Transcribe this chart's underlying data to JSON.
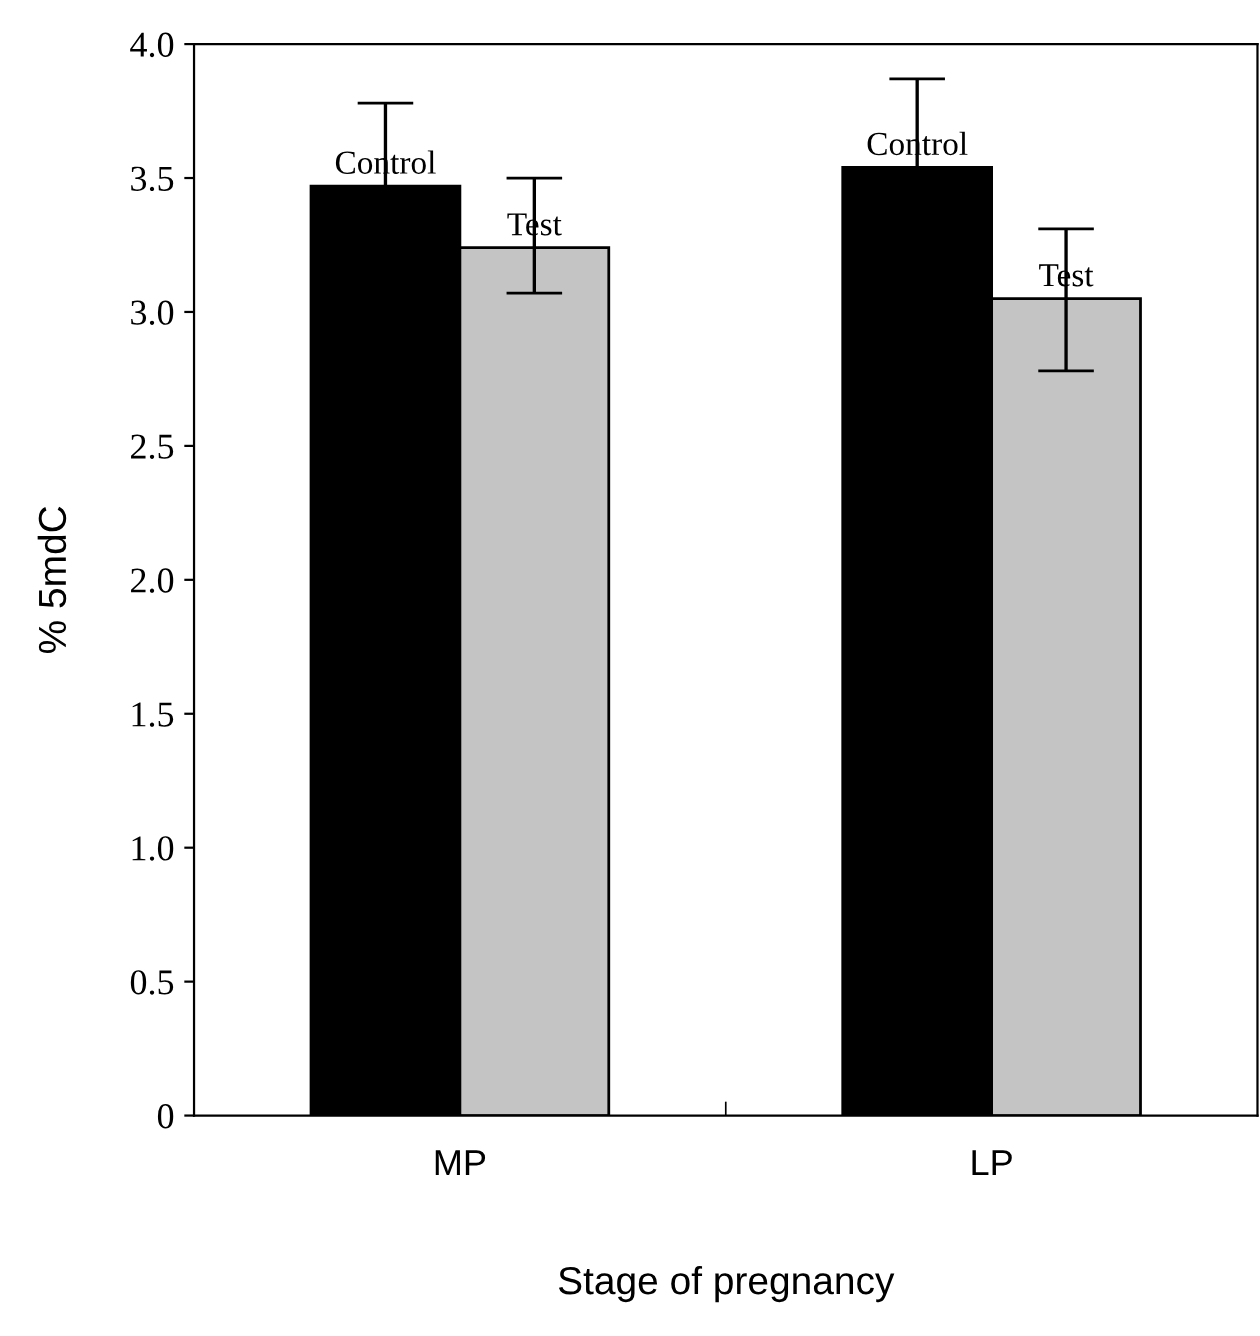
{
  "chart_data": {
    "type": "bar",
    "xlabel": "Stage of pregnancy",
    "ylabel": "% 5mdC",
    "categories": [
      "MP",
      "LP"
    ],
    "series": [
      {
        "name": "Control",
        "color": "#000000",
        "values": [
          3.47,
          3.54
        ],
        "errors": [
          0.31,
          0.33
        ]
      },
      {
        "name": "Test",
        "color": "#c4c4c4",
        "values": [
          3.24,
          3.05
        ],
        "errors": [
          [
            3.07,
            3.5
          ],
          [
            2.78,
            3.31
          ]
        ]
      }
    ],
    "ylim": [
      0,
      4.0
    ],
    "yticks": [
      0,
      0.5,
      {
        "value": 1,
        "label": "1.0"
      },
      1.5,
      {
        "value": 2,
        "label": "2.0"
      },
      2.5,
      {
        "value": 3,
        "label": "3.0"
      },
      3.5,
      {
        "value": 4,
        "label": "4.0"
      }
    ],
    "grid": false,
    "legend": false
  }
}
